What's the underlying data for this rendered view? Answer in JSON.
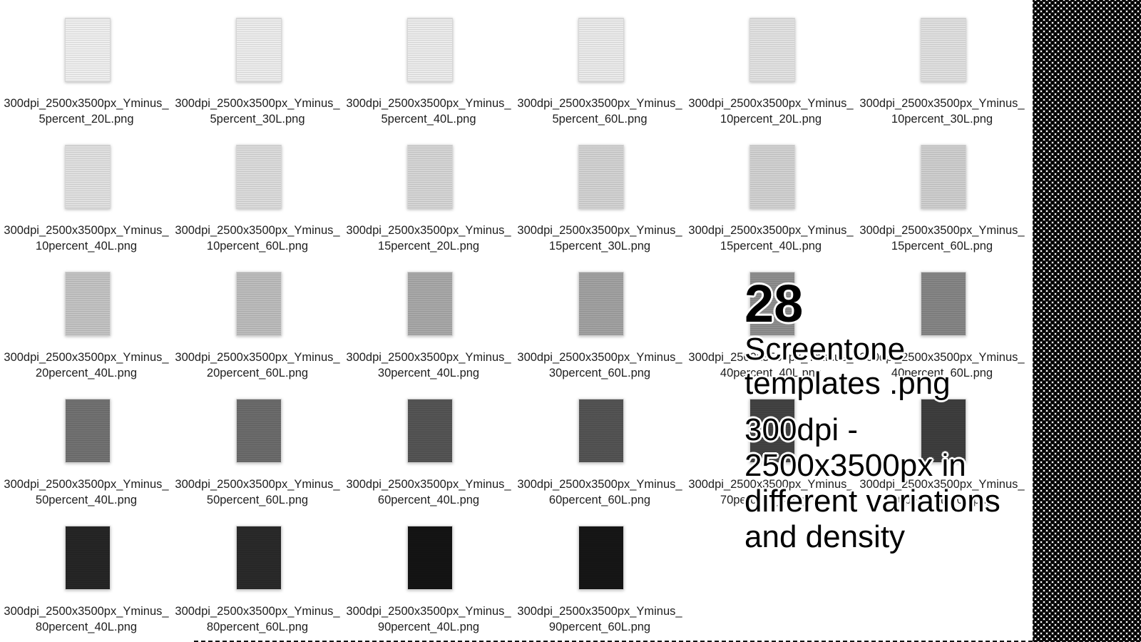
{
  "files": [
    {
      "name": "300dpi_2500x3500px_Yminus_5percent_20L.png",
      "tone": "#efefef"
    },
    {
      "name": "300dpi_2500x3500px_Yminus_5percent_30L.png",
      "tone": "#ededed"
    },
    {
      "name": "300dpi_2500x3500px_Yminus_5percent_40L.png",
      "tone": "#ececec"
    },
    {
      "name": "300dpi_2500x3500px_Yminus_5percent_60L.png",
      "tone": "#ebebeb"
    },
    {
      "name": "300dpi_2500x3500px_Yminus_10percent_20L.png",
      "tone": "#e2e2e2"
    },
    {
      "name": "300dpi_2500x3500px_Yminus_10percent_30L.png",
      "tone": "#e0e0e0"
    },
    {
      "name": "300dpi_2500x3500px_Yminus_10percent_40L.png",
      "tone": "#e1e1e1"
    },
    {
      "name": "300dpi_2500x3500px_Yminus_10percent_60L.png",
      "tone": "#dcdcdc"
    },
    {
      "name": "300dpi_2500x3500px_Yminus_15percent_20L.png",
      "tone": "#d6d6d6"
    },
    {
      "name": "300dpi_2500x3500px_Yminus_15percent_30L.png",
      "tone": "#d3d3d3"
    },
    {
      "name": "300dpi_2500x3500px_Yminus_15percent_40L.png",
      "tone": "#d2d2d2"
    },
    {
      "name": "300dpi_2500x3500px_Yminus_15percent_60L.png",
      "tone": "#cfcfcf"
    },
    {
      "name": "300dpi_2500x3500px_Yminus_20percent_40L.png",
      "tone": "#c4c4c4"
    },
    {
      "name": "300dpi_2500x3500px_Yminus_20percent_60L.png",
      "tone": "#bdbdbd"
    },
    {
      "name": "300dpi_2500x3500px_Yminus_30percent_40L.png",
      "tone": "#a9a9a9"
    },
    {
      "name": "300dpi_2500x3500px_Yminus_30percent_60L.png",
      "tone": "#a2a2a2"
    },
    {
      "name": "300dpi_2500x3500px_Yminus_40percent_40L.png",
      "tone": "#8f8f8f"
    },
    {
      "name": "300dpi_2500x3500px_Yminus_40percent_60L.png",
      "tone": "#868686"
    },
    {
      "name": "300dpi_2500x3500px_Yminus_50percent_40L.png",
      "tone": "#727272"
    },
    {
      "name": "300dpi_2500x3500px_Yminus_50percent_60L.png",
      "tone": "#6c6c6c"
    },
    {
      "name": "300dpi_2500x3500px_Yminus_60percent_40L.png",
      "tone": "#555555"
    },
    {
      "name": "300dpi_2500x3500px_Yminus_60percent_60L.png",
      "tone": "#545454"
    },
    {
      "name": "300dpi_2500x3500px_Yminus_70percent_40L.png",
      "tone": "#434343"
    },
    {
      "name": "300dpi_2500x3500px_Yminus_70percent_60L.png",
      "tone": "#3e3e3e"
    },
    {
      "name": "300dpi_2500x3500px_Yminus_80percent_40L.png",
      "tone": "#262626"
    },
    {
      "name": "300dpi_2500x3500px_Yminus_80percent_60L.png",
      "tone": "#2a2a2a"
    },
    {
      "name": "300dpi_2500x3500px_Yminus_90percent_40L.png",
      "tone": "#141414"
    },
    {
      "name": "300dpi_2500x3500px_Yminus_90percent_60L.png",
      "tone": "#161616"
    }
  ],
  "promo": {
    "count": "28",
    "title": "Screentone templates .png",
    "description": "300dpi - 2500x3500px in different variations and density"
  }
}
